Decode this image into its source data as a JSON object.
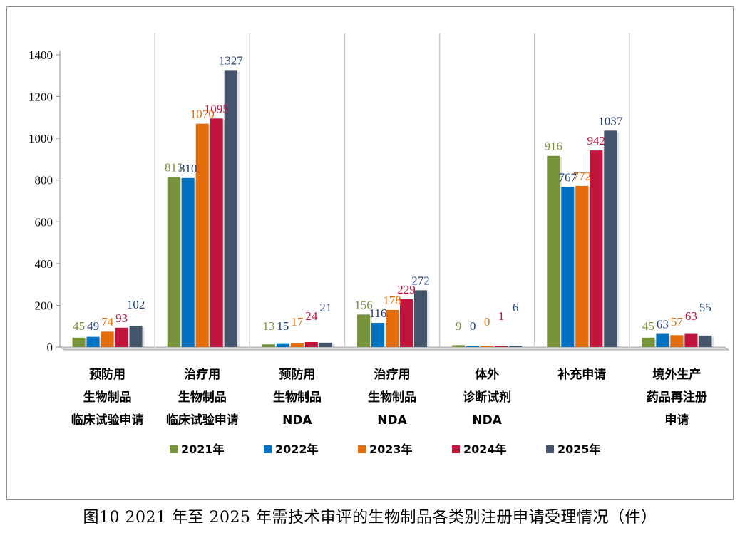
{
  "caption": "图10  2021 年至 2025 年需技术审评的生物制品各类别注册申请受理情况（件）",
  "chart_data": {
    "type": "bar",
    "title": "",
    "xlabel": "",
    "ylabel": "",
    "ylim": [
      0,
      1400
    ],
    "yticks": [
      0,
      200,
      400,
      600,
      800,
      1000,
      1200,
      1400
    ],
    "grid": "vertical category separators",
    "legend_position": "bottom",
    "categories": [
      [
        "预防用",
        "生物制品",
        "临床试验申请"
      ],
      [
        "治疗用",
        "生物制品",
        "临床试验申请"
      ],
      [
        "预防用",
        "生物制品",
        "NDA"
      ],
      [
        "治疗用",
        "生物制品",
        "NDA"
      ],
      [
        "体外",
        "诊断试剂",
        "NDA"
      ],
      [
        "补充申请"
      ],
      [
        "境外生产",
        "药品再注册",
        "申请"
      ]
    ],
    "series": [
      {
        "name": "2021年",
        "color": "#77933c",
        "values": [
          45,
          815,
          13,
          156,
          9,
          916,
          45
        ]
      },
      {
        "name": "2022年",
        "color": "#0070c0",
        "values": [
          49,
          810,
          15,
          116,
          0,
          767,
          63
        ]
      },
      {
        "name": "2023年",
        "color": "#e46c0a",
        "values": [
          74,
          1070,
          17,
          178,
          0,
          772,
          57
        ]
      },
      {
        "name": "2024年",
        "color": "#c0143c",
        "values": [
          93,
          1095,
          24,
          229,
          1,
          942,
          63
        ]
      },
      {
        "name": "2025年",
        "color": "#44546a",
        "values": [
          102,
          1327,
          21,
          272,
          6,
          1037,
          55
        ]
      }
    ],
    "label_colors": [
      "#77933c",
      "#1f3d7a",
      "#e46c0a",
      "#c0143c",
      "#1f3d7a"
    ]
  }
}
